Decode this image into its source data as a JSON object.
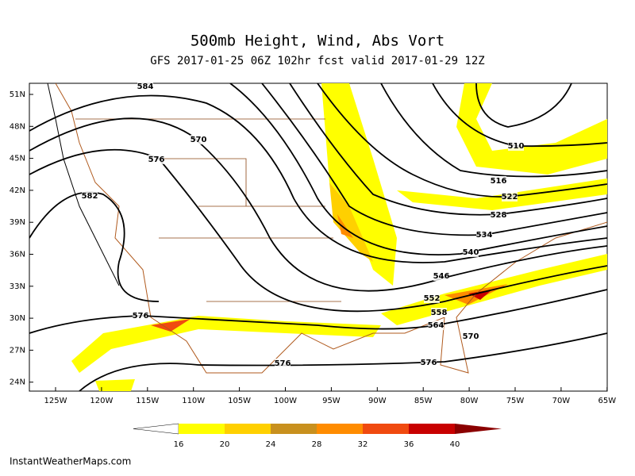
{
  "header": {
    "title": "500mb Height, Wind, Abs Vort",
    "subtitle": "GFS 2017-01-25 06Z 102hr fcst valid 2017-01-29 12Z"
  },
  "map": {
    "lat_labels": [
      "51N",
      "48N",
      "45N",
      "42N",
      "39N",
      "36N",
      "33N",
      "30N",
      "27N",
      "24N"
    ],
    "lon_labels": [
      "125W",
      "120W",
      "115W",
      "110W",
      "105W",
      "100W",
      "95W",
      "90W",
      "85W",
      "80W",
      "75W",
      "70W",
      "65W"
    ],
    "contour_labels": [
      584,
      570,
      576,
      582,
      576,
      576,
      510,
      516,
      522,
      528,
      534,
      540,
      546,
      552,
      558,
      564,
      570,
      576
    ]
  },
  "colorbar": {
    "ticks": [
      16,
      20,
      24,
      28,
      32,
      36,
      40
    ],
    "colors": [
      "#ffffff",
      "#ffff00",
      "#ffd000",
      "#c8901e",
      "#ff8c00",
      "#f04a10",
      "#c80000",
      "#8b0000"
    ]
  },
  "footer": "InstantWeatherMaps.com"
}
